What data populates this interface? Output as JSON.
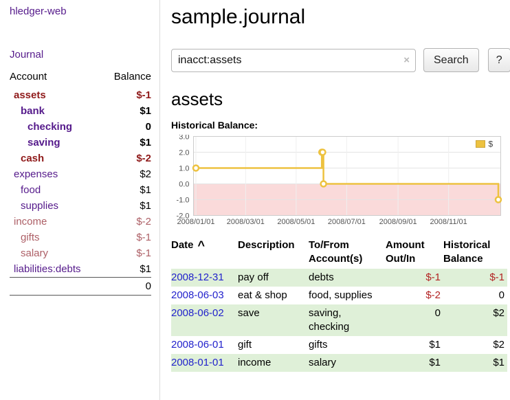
{
  "colors": {
    "link_purple": "#551a8b",
    "date_link_blue": "#2222cc",
    "negative_strong_red": "#8f1a1a",
    "negative_soft_red": "#ad5f66",
    "negative_table_red": "#b22222",
    "row_highlight_green": "#dff0d8",
    "chart_line_gold": "#edc240",
    "chart_negative_region_pink": "#fadada"
  },
  "sidebar": {
    "app_title": "hledger-web",
    "journal_link": "Journal",
    "table": {
      "account_header": "Account",
      "balance_header": "Balance",
      "rows": [
        {
          "name": "assets",
          "balance": "$-1",
          "indent": 0,
          "bold": true
        },
        {
          "name": "bank",
          "balance": "$1",
          "indent": 1,
          "bold": true
        },
        {
          "name": "checking",
          "balance": "0",
          "indent": 2,
          "bold": true
        },
        {
          "name": "saving",
          "balance": "$1",
          "indent": 2,
          "bold": true
        },
        {
          "name": "cash",
          "balance": "$-2",
          "indent": 1,
          "bold": true
        },
        {
          "name": "expenses",
          "balance": "$2",
          "indent": 0,
          "bold": false
        },
        {
          "name": "food",
          "balance": "$1",
          "indent": 1,
          "bold": false
        },
        {
          "name": "supplies",
          "balance": "$1",
          "indent": 1,
          "bold": false
        },
        {
          "name": "income",
          "balance": "$-2",
          "indent": 0,
          "bold": false
        },
        {
          "name": "gifts",
          "balance": "$-1",
          "indent": 1,
          "bold": false
        },
        {
          "name": "salary",
          "balance": "$-1",
          "indent": 1,
          "bold": false
        },
        {
          "name": "liabilities:debts",
          "balance": "$1",
          "indent": 0,
          "bold": false
        }
      ],
      "total": "0"
    }
  },
  "main": {
    "title": "sample.journal",
    "search": {
      "value": "inacct:assets",
      "clear_icon": "×",
      "button_label": "Search",
      "help_label": "?"
    },
    "account_heading": "assets",
    "chart_label": "Historical Balance:",
    "register": {
      "headers": [
        {
          "label": "Date",
          "sort": "^"
        },
        {
          "label": "Description"
        },
        {
          "label": "To/From Account(s)"
        },
        {
          "label": "Amount Out/In"
        },
        {
          "label": "Historical Balance"
        }
      ],
      "rows": [
        {
          "date": "2008-12-31",
          "description": "pay off",
          "accounts": "debts",
          "amount": "$-1",
          "balance": "$-1"
        },
        {
          "date": "2008-06-03",
          "description": "eat & shop",
          "accounts": "food, supplies",
          "amount": "$-2",
          "balance": "0"
        },
        {
          "date": "2008-06-02",
          "description": "save",
          "accounts": "saving, checking",
          "amount": "0",
          "balance": "$2"
        },
        {
          "date": "2008-06-01",
          "description": "gift",
          "accounts": "gifts",
          "amount": "$1",
          "balance": "$2"
        },
        {
          "date": "2008-01-01",
          "description": "income",
          "accounts": "salary",
          "amount": "$1",
          "balance": "$1"
        }
      ]
    }
  },
  "chart_data": {
    "type": "line",
    "step": true,
    "title": "Historical Balance",
    "series": [
      {
        "name": "$",
        "color": "#edc240",
        "points": [
          [
            "2008-01-01",
            1
          ],
          [
            "2008-06-01",
            2
          ],
          [
            "2008-06-02",
            2
          ],
          [
            "2008-06-03",
            0
          ],
          [
            "2008-12-31",
            -1
          ]
        ]
      }
    ],
    "x_ticks": [
      "2008/01/01",
      "2008/03/01",
      "2008/05/01",
      "2008/07/01",
      "2008/09/01",
      "2008/11/01"
    ],
    "y_ticks": [
      3.0,
      2.0,
      1.0,
      0.0,
      -1.0,
      -2.0
    ],
    "ylim": [
      -2,
      3
    ],
    "xlim": [
      "2008-01-01",
      "2008-12-31"
    ],
    "legend": {
      "label": "$",
      "position": "top-right"
    },
    "negative_region_color": "#fadada",
    "grid": true
  }
}
